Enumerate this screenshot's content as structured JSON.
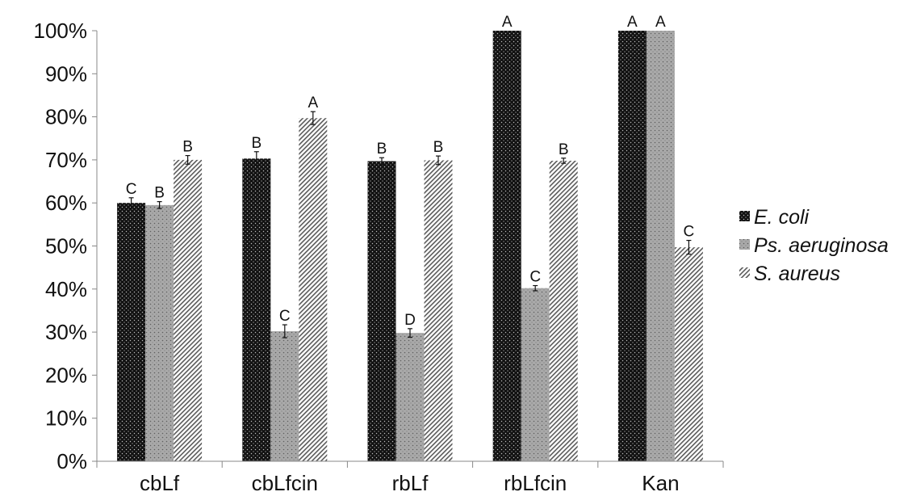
{
  "chart_data": {
    "type": "bar",
    "title": "",
    "xlabel": "",
    "ylabel": "",
    "ylim": [
      0,
      100
    ],
    "y_unit": "%",
    "y_ticks": [
      "0%",
      "10%",
      "20%",
      "30%",
      "40%",
      "50%",
      "60%",
      "70%",
      "80%",
      "90%",
      "100%"
    ],
    "grid": false,
    "legend_position": "right",
    "categories": [
      "cbLf",
      "cbLfcin",
      "rbLf",
      "rbLfcin",
      "Kan"
    ],
    "series": [
      {
        "name": "E. coli",
        "pattern": "dark-dots",
        "color": "#1a1a1a",
        "values": [
          60,
          70.3,
          69.7,
          100,
          100
        ],
        "errors": [
          1.2,
          1.6,
          0.8,
          0,
          0
        ],
        "letters": [
          "C",
          "B",
          "B",
          "A",
          "A"
        ]
      },
      {
        "name": "Ps. aeruginosa",
        "pattern": "gray-dots",
        "color": "#a6a6a6",
        "values": [
          59.5,
          30.2,
          29.8,
          40.2,
          100
        ],
        "errors": [
          0.8,
          1.5,
          1.0,
          0.6,
          0
        ],
        "letters": [
          "B",
          "C",
          "D",
          "C",
          "A"
        ]
      },
      {
        "name": "S. aureus",
        "pattern": "diagonal-hatch",
        "color": "#6e6e6e",
        "values": [
          70,
          79.7,
          69.9,
          69.8,
          49.7
        ],
        "errors": [
          1.0,
          1.5,
          1.0,
          0.6,
          1.6
        ],
        "letters": [
          "B",
          "A",
          "B",
          "B",
          "C"
        ]
      }
    ]
  }
}
